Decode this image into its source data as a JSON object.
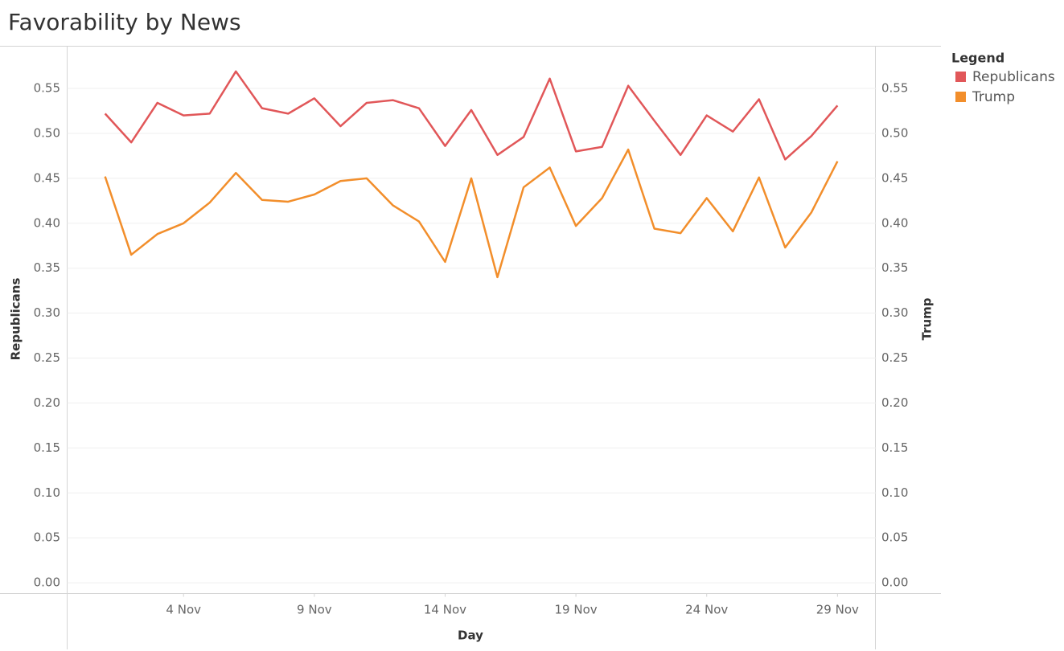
{
  "chart_data": {
    "type": "line",
    "title": "Favorability by News",
    "x_label": "Day",
    "y_label": "Republicans",
    "y2_label": "Trump",
    "legend_title": "Legend",
    "legend": "right",
    "x": [
      1,
      2,
      3,
      4,
      5,
      6,
      7,
      8,
      9,
      10,
      11,
      12,
      13,
      14,
      15,
      16,
      17,
      18,
      19,
      20,
      21,
      22,
      23,
      24,
      25,
      26,
      27,
      28,
      29
    ],
    "xlim": [
      -0.45,
      30.45
    ],
    "xticks": [
      {
        "value": 4,
        "label": "4 Nov"
      },
      {
        "value": 9,
        "label": "9 Nov"
      },
      {
        "value": 14,
        "label": "14 Nov"
      },
      {
        "value": 19,
        "label": "19 Nov"
      },
      {
        "value": 24,
        "label": "24 Nov"
      },
      {
        "value": 29,
        "label": "29 Nov"
      }
    ],
    "ylim": [
      -0.012,
      0.597
    ],
    "yticks": [
      {
        "value": 0,
        "label": "0.00"
      },
      0.05,
      {
        "value": 0.1,
        "label": "0.10"
      },
      0.15,
      {
        "value": 0.2,
        "label": "0.20"
      },
      0.25,
      {
        "value": 0.3,
        "label": "0.30"
      },
      0.35,
      {
        "value": 0.4,
        "label": "0.40"
      },
      0.45,
      {
        "value": 0.5,
        "label": "0.50"
      },
      0.55
    ],
    "y2lim": [
      -0.012,
      0.597
    ],
    "y2ticks": [
      {
        "value": 0,
        "label": "0.00"
      },
      0.05,
      {
        "value": 0.1,
        "label": "0.10"
      },
      0.15,
      {
        "value": 0.2,
        "label": "0.20"
      },
      0.25,
      {
        "value": 0.3,
        "label": "0.30"
      },
      0.35,
      {
        "value": 0.4,
        "label": "0.40"
      },
      0.45,
      {
        "value": 0.5,
        "label": "0.50"
      },
      0.55
    ],
    "grid": true,
    "series": [
      {
        "name": "Republicans",
        "color": "#e15759",
        "values": [
          0.522,
          0.49,
          0.534,
          0.52,
          0.522,
          0.569,
          0.528,
          0.522,
          0.539,
          0.508,
          0.534,
          0.537,
          0.528,
          0.486,
          0.526,
          0.476,
          0.496,
          0.561,
          0.48,
          0.485,
          0.553,
          0.514,
          0.476,
          0.52,
          0.502,
          0.538,
          0.471,
          0.497,
          0.531
        ]
      },
      {
        "name": "Trump",
        "color": "#f28e2b",
        "axis": "y2",
        "values": [
          0.452,
          0.365,
          0.388,
          0.4,
          0.423,
          0.456,
          0.426,
          0.424,
          0.432,
          0.447,
          0.45,
          0.42,
          0.402,
          0.357,
          0.45,
          0.34,
          0.44,
          0.462,
          0.397,
          0.428,
          0.482,
          0.394,
          0.389,
          0.428,
          0.391,
          0.451,
          0.373,
          0.412,
          0.469
        ]
      }
    ]
  }
}
